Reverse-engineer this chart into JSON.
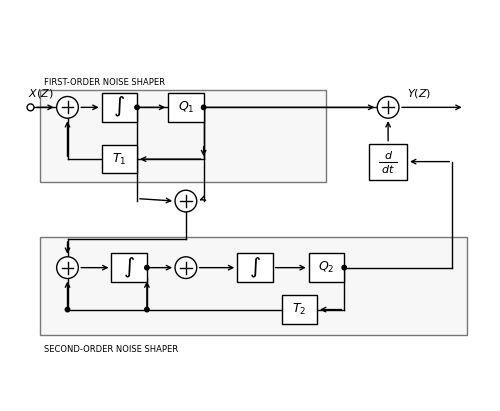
{
  "label_first": "FIRST-ORDER NOISE SHAPER",
  "label_second": "SECOND-ORDER NOISE SHAPER",
  "bg_color": "#ffffff",
  "line_color": "#000000",
  "box_edge": "#333333",
  "rect_edge": "#888888",
  "rect_face": "#f5f5f5"
}
